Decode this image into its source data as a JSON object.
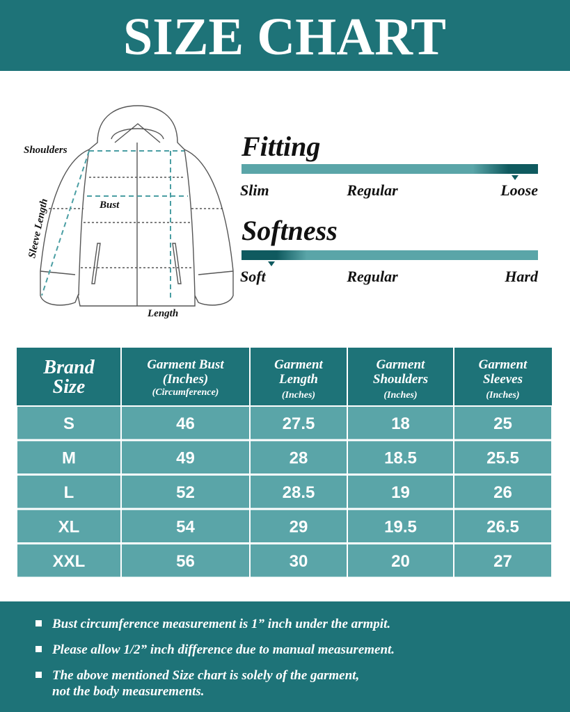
{
  "header": {
    "title": "SIZE CHART"
  },
  "diagram": {
    "shoulders": "Shoulders",
    "bust": "Bust",
    "sleeve": "Sleeve Length",
    "length": "Length"
  },
  "fitting": {
    "title": "Fitting",
    "labels": [
      "Slim",
      "Regular",
      "Loose"
    ]
  },
  "softness": {
    "title": "Softness",
    "labels": [
      "Soft",
      "Regular",
      "Hard"
    ]
  },
  "table": {
    "header": [
      [
        "Brand",
        "Size"
      ],
      [
        "Garment Bust",
        "(Inches)",
        "(Circumference)"
      ],
      [
        "Garment",
        "Length",
        "(Inches)"
      ],
      [
        "Garment",
        "Shoulders",
        "(Inches)"
      ],
      [
        "Garment",
        "Sleeves",
        "(Inches)"
      ]
    ],
    "rows": [
      [
        "S",
        "46",
        "27.5",
        "18",
        "25"
      ],
      [
        "M",
        "49",
        "28",
        "18.5",
        "25.5"
      ],
      [
        "L",
        "52",
        "28.5",
        "19",
        "26"
      ],
      [
        "XL",
        "54",
        "29",
        "19.5",
        "26.5"
      ],
      [
        "XXL",
        "56",
        "30",
        "20",
        "27"
      ]
    ]
  },
  "notes": [
    [
      "Bust circumference measurement is 1” inch under the armpit."
    ],
    [
      "Please allow 1/2” inch difference due to manual measurement."
    ],
    [
      "The above mentioned Size chart is solely of the garment,",
      "not the body measurements."
    ]
  ]
}
